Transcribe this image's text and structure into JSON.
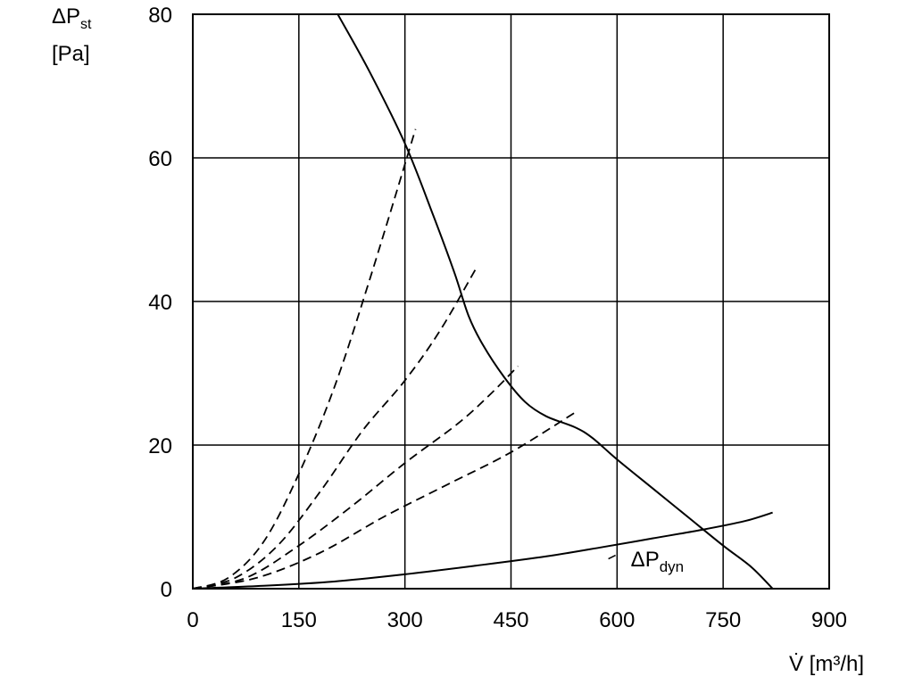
{
  "chart_data": {
    "type": "line",
    "title": "",
    "xlabel": "V̇ [m³/h]",
    "ylabel_line1": "ΔP",
    "ylabel_line1_sub": "st",
    "ylabel_line2": "[Pa]",
    "xlim": [
      0,
      900
    ],
    "ylim": [
      0,
      80
    ],
    "x_ticks": [
      0,
      150,
      300,
      450,
      600,
      750,
      900
    ],
    "y_ticks": [
      0,
      20,
      40,
      60,
      80
    ],
    "grid": true,
    "series": [
      {
        "style": "solid",
        "points": [
          [
            205,
            80
          ],
          [
            250,
            72
          ],
          [
            300,
            62
          ],
          [
            340,
            52
          ],
          [
            370,
            44
          ],
          [
            390,
            38
          ],
          [
            410,
            34
          ],
          [
            440,
            29.5
          ],
          [
            470,
            26
          ],
          [
            500,
            24
          ],
          [
            540,
            22.5
          ],
          [
            565,
            21
          ],
          [
            600,
            18
          ],
          [
            650,
            14
          ],
          [
            700,
            10
          ],
          [
            750,
            6
          ],
          [
            790,
            3
          ],
          [
            820,
            0
          ]
        ]
      },
      {
        "style": "dashed",
        "points": [
          [
            0,
            0
          ],
          [
            50,
            1.5
          ],
          [
            100,
            6.5
          ],
          [
            150,
            16
          ],
          [
            200,
            28
          ],
          [
            250,
            43
          ],
          [
            315,
            64
          ]
        ]
      },
      {
        "style": "dashed",
        "points": [
          [
            0,
            0
          ],
          [
            60,
            1.5
          ],
          [
            120,
            6
          ],
          [
            180,
            13.5
          ],
          [
            240,
            22
          ],
          [
            300,
            29
          ],
          [
            350,
            36
          ],
          [
            400,
            44.5
          ]
        ]
      },
      {
        "style": "dashed",
        "points": [
          [
            0,
            0
          ],
          [
            75,
            1.5
          ],
          [
            150,
            6
          ],
          [
            225,
            11.5
          ],
          [
            300,
            17.5
          ],
          [
            375,
            23
          ],
          [
            420,
            27
          ],
          [
            460,
            31
          ]
        ]
      },
      {
        "style": "dashed",
        "points": [
          [
            0,
            0
          ],
          [
            90,
            1.5
          ],
          [
            180,
            5
          ],
          [
            270,
            10
          ],
          [
            360,
            14.5
          ],
          [
            450,
            19
          ],
          [
            540,
            24.5
          ]
        ]
      },
      {
        "style": "solid",
        "name": "ΔP",
        "name_sub": "dyn",
        "points": [
          [
            0,
            0
          ],
          [
            100,
            0.4
          ],
          [
            200,
            1
          ],
          [
            300,
            2
          ],
          [
            400,
            3.2
          ],
          [
            500,
            4.5
          ],
          [
            580,
            5.8
          ],
          [
            650,
            7
          ],
          [
            720,
            8.2
          ],
          [
            780,
            9.4
          ],
          [
            820,
            10.6
          ]
        ]
      }
    ],
    "annotations": [
      {
        "text": "ΔP",
        "sub": "dyn",
        "x": 478,
        "y": 3,
        "target": 5
      }
    ]
  }
}
